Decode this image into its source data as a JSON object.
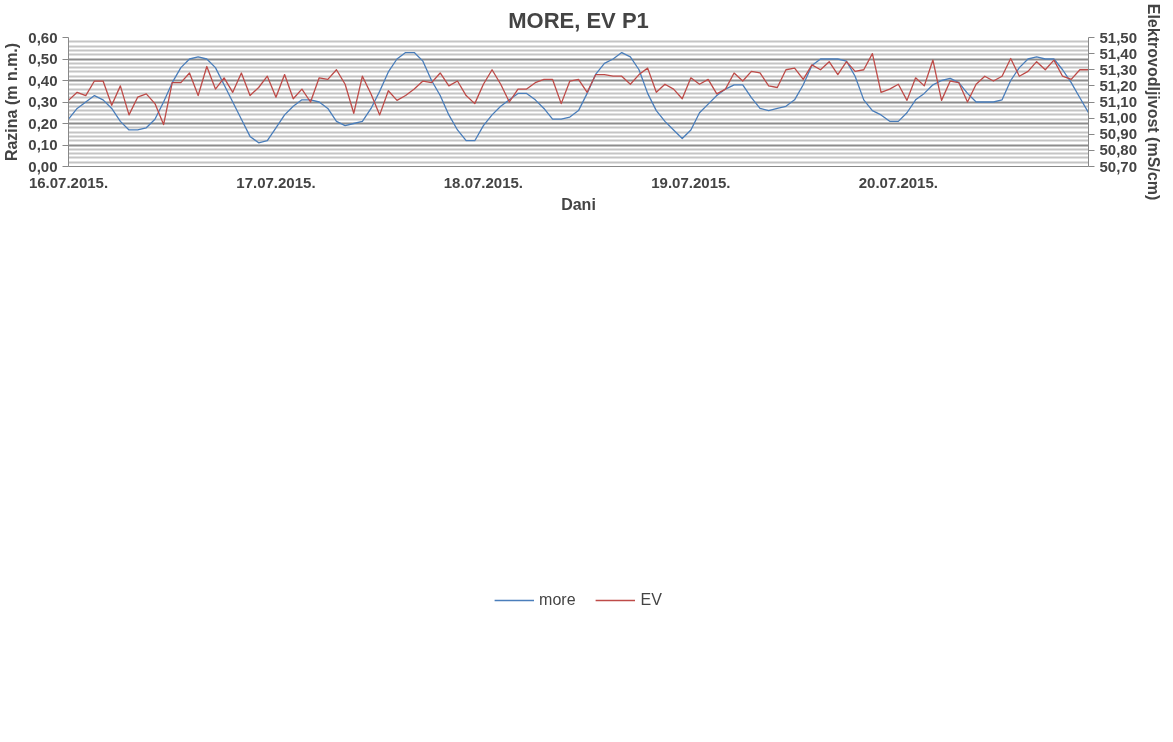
{
  "chart_data": {
    "type": "line",
    "title": "MORE, EV P1",
    "xlabel": "Dani",
    "ylabel": "Razina (m n.m.)",
    "y2label": "Elektrovodljivost (mS/cm)",
    "categories": [
      "16.07.2015.",
      null,
      null,
      null,
      null,
      null,
      null,
      null,
      null,
      null,
      null,
      null,
      null,
      null,
      null,
      null,
      null,
      null,
      null,
      null,
      null,
      null,
      null,
      null,
      "17.07.2015.",
      null,
      null,
      null,
      null,
      null,
      null,
      null,
      null,
      null,
      null,
      null,
      null,
      null,
      null,
      null,
      null,
      null,
      null,
      null,
      null,
      null,
      null,
      null,
      "18.07.2015.",
      null,
      null,
      null,
      null,
      null,
      null,
      null,
      null,
      null,
      null,
      null,
      null,
      null,
      null,
      null,
      null,
      null,
      null,
      null,
      null,
      null,
      null,
      null,
      "19.07.2015.",
      null,
      null,
      null,
      null,
      null,
      null,
      null,
      null,
      null,
      null,
      null,
      null,
      null,
      null,
      null,
      null,
      null,
      null,
      null,
      null,
      null,
      null,
      null,
      "20.07.2015.",
      null,
      null,
      null,
      null,
      null,
      null,
      null,
      null,
      null,
      null,
      null,
      null,
      null,
      null,
      null,
      null,
      null,
      null,
      null,
      null,
      null,
      null
    ],
    "series": [
      {
        "name": "more",
        "color": "#4a7ebb",
        "values": [
          0.22,
          0.27,
          0.3,
          0.33,
          0.31,
          0.27,
          0.21,
          0.17,
          0.17,
          0.18,
          0.22,
          0.3,
          0.39,
          0.46,
          0.5,
          0.51,
          0.5,
          0.46,
          0.38,
          0.3,
          0.22,
          0.14,
          0.11,
          0.12,
          0.18,
          0.24,
          0.28,
          0.31,
          0.31,
          0.3,
          0.27,
          0.21,
          0.19,
          0.2,
          0.21,
          0.27,
          0.35,
          0.44,
          0.5,
          0.53,
          0.53,
          0.49,
          0.4,
          0.33,
          0.24,
          0.17,
          0.12,
          0.12,
          0.19,
          0.24,
          0.28,
          0.31,
          0.34,
          0.34,
          0.31,
          0.27,
          0.22,
          0.22,
          0.23,
          0.26,
          0.34,
          0.43,
          0.48,
          0.5,
          0.53,
          0.51,
          0.45,
          0.34,
          0.26,
          0.21,
          0.17,
          0.13,
          0.17,
          0.25,
          0.29,
          0.33,
          0.36,
          0.38,
          0.38,
          0.32,
          0.27,
          0.26,
          0.27,
          0.28,
          0.31,
          0.38,
          0.47,
          0.5,
          0.5,
          0.5,
          0.49,
          0.42,
          0.31,
          0.26,
          0.24,
          0.21,
          0.21,
          0.25,
          0.31,
          0.34,
          0.38,
          0.4,
          0.41,
          0.39,
          0.34,
          0.3,
          0.3,
          0.3,
          0.31,
          0.4,
          0.46,
          0.5,
          0.51,
          0.5,
          0.5,
          0.45,
          0.39,
          0.32,
          0.25
        ]
      },
      {
        "name": "EV",
        "color": "#be4b48",
        "axis": "y2",
        "values": [
          51.11,
          51.16,
          51.14,
          51.23,
          51.23,
          51.08,
          51.2,
          51.02,
          51.13,
          51.15,
          51.09,
          50.96,
          51.22,
          51.22,
          51.28,
          51.14,
          51.32,
          51.18,
          51.25,
          51.16,
          51.28,
          51.14,
          51.19,
          51.26,
          51.13,
          51.27,
          51.12,
          51.18,
          51.1,
          51.25,
          51.24,
          51.3,
          51.21,
          51.03,
          51.26,
          51.15,
          51.02,
          51.17,
          51.11,
          51.14,
          51.18,
          51.23,
          51.22,
          51.28,
          51.2,
          51.23,
          51.14,
          51.09,
          51.21,
          51.3,
          51.21,
          51.1,
          51.18,
          51.18,
          51.22,
          51.24,
          51.24,
          51.09,
          51.23,
          51.24,
          51.16,
          51.27,
          51.27,
          51.26,
          51.26,
          51.21,
          51.27,
          51.31,
          51.16,
          51.21,
          51.18,
          51.12,
          51.25,
          51.21,
          51.24,
          51.15,
          51.18,
          51.28,
          51.23,
          51.29,
          51.28,
          51.2,
          51.19,
          51.3,
          51.31,
          51.24,
          51.33,
          51.3,
          51.35,
          51.27,
          51.35,
          51.29,
          51.3,
          51.4,
          51.16,
          51.18,
          51.21,
          51.11,
          51.25,
          51.2,
          51.36,
          51.11,
          51.23,
          51.22,
          51.1,
          51.21,
          51.26,
          51.23,
          51.26,
          51.37,
          51.26,
          51.29,
          51.35,
          51.3,
          51.36,
          51.26,
          51.24,
          51.3,
          51.3
        ]
      }
    ],
    "ylim": [
      0,
      0.6
    ],
    "yticks": [
      {
        "value": 0,
        "label": "0,00"
      },
      {
        "value": 0.02,
        "label": null
      },
      {
        "value": 0.04,
        "label": null
      },
      {
        "value": 0.06,
        "label": null
      },
      {
        "value": 0.08,
        "label": null
      },
      {
        "value": 0.1,
        "label": "0,10"
      },
      {
        "value": 0.12,
        "label": null
      },
      {
        "value": 0.14,
        "label": null
      },
      {
        "value": 0.16,
        "label": null
      },
      {
        "value": 0.18,
        "label": null
      },
      {
        "value": 0.2,
        "label": "0,20"
      },
      {
        "value": 0.22,
        "label": null
      },
      {
        "value": 0.24,
        "label": null
      },
      {
        "value": 0.26,
        "label": null
      },
      {
        "value": 0.28,
        "label": null
      },
      {
        "value": 0.3,
        "label": "0,30"
      },
      {
        "value": 0.32,
        "label": null
      },
      {
        "value": 0.34,
        "label": null
      },
      {
        "value": 0.36,
        "label": null
      },
      {
        "value": 0.38,
        "label": null
      },
      {
        "value": 0.4,
        "label": "0,40"
      },
      {
        "value": 0.42,
        "label": null
      },
      {
        "value": 0.44,
        "label": null
      },
      {
        "value": 0.46,
        "label": null
      },
      {
        "value": 0.48,
        "label": null
      },
      {
        "value": 0.5,
        "label": "0,50"
      },
      {
        "value": 0.52,
        "label": null
      },
      {
        "value": 0.54,
        "label": null
      },
      {
        "value": 0.56,
        "label": null
      },
      {
        "value": 0.58,
        "label": null
      },
      {
        "value": 0.6,
        "label": "0,60"
      }
    ],
    "y2lim": [
      50.7,
      51.5
    ],
    "y2ticks": [
      {
        "value": 50.7,
        "label": "50,70"
      },
      {
        "value": 50.8,
        "label": "50,80"
      },
      {
        "value": 50.9,
        "label": "50,90"
      },
      {
        "value": 51.0,
        "label": "51,00"
      },
      {
        "value": 51.1,
        "label": "51,10"
      },
      {
        "value": 51.2,
        "label": "51,20"
      },
      {
        "value": 51.3,
        "label": "51,30"
      },
      {
        "value": 51.4,
        "label": "51,40"
      },
      {
        "value": 51.5,
        "label": "51,50"
      }
    ],
    "grid": "y",
    "legend": "bottom",
    "marker": "none",
    "line_style": "solid"
  }
}
